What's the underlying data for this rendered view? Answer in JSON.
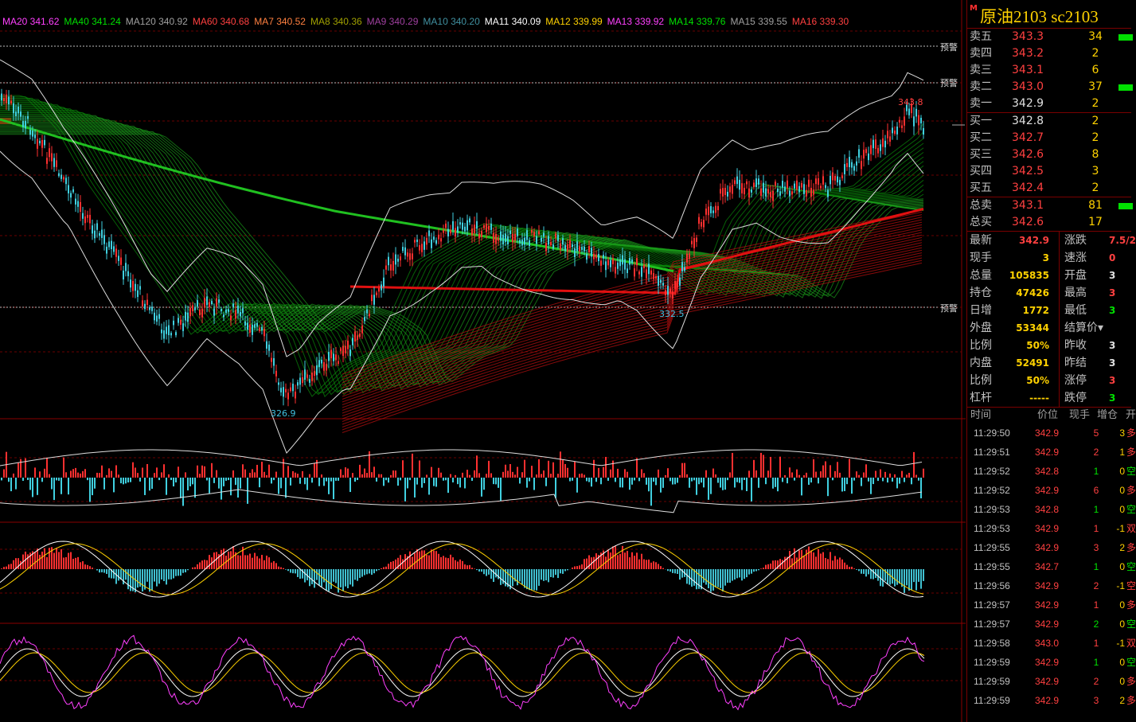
{
  "ma_legend": [
    {
      "label": "MA20 341.62",
      "color": "#ff40ff"
    },
    {
      "label": "MA40 341.24",
      "color": "#00e000"
    },
    {
      "label": "MA120 340.92",
      "color": "#a0a0a0"
    },
    {
      "label": "MA60 340.68",
      "color": "#ff4040"
    },
    {
      "label": "MA7 340.52",
      "color": "#ff8040"
    },
    {
      "label": "MA8 340.36",
      "color": "#a0a000"
    },
    {
      "label": "MA9 340.29",
      "color": "#a040a0"
    },
    {
      "label": "MA10 340.20",
      "color": "#4090a0"
    },
    {
      "label": "MA11 340.09",
      "color": "#ffffff"
    },
    {
      "label": "MA12 339.99",
      "color": "#ffd200"
    },
    {
      "label": "MA13 339.92",
      "color": "#ff40ff"
    },
    {
      "label": "MA14 339.76",
      "color": "#00e000"
    },
    {
      "label": "MA15 339.55",
      "color": "#a0a0a0"
    },
    {
      "label": "MA16 339.30",
      "color": "#ff4040"
    }
  ],
  "chart": {
    "warning_label": "预警",
    "high_label": "343.8",
    "mid_low_label": "332.5",
    "low_label": "326.9"
  },
  "quote": {
    "title": "原油2103  sc2103",
    "asks": [
      {
        "label": "卖五",
        "price": "343.3",
        "vol": "34",
        "price_color": "#ff4040",
        "bar": 1
      },
      {
        "label": "卖四",
        "price": "343.2",
        "vol": "2",
        "price_color": "#ff4040",
        "bar": 0
      },
      {
        "label": "卖三",
        "price": "343.1",
        "vol": "6",
        "price_color": "#ff4040",
        "bar": 0
      },
      {
        "label": "卖二",
        "price": "343.0",
        "vol": "37",
        "price_color": "#ff4040",
        "bar": 1
      },
      {
        "label": "卖一",
        "price": "342.9",
        "vol": "2",
        "price_color": "#e0e0e0",
        "bar": 0
      }
    ],
    "bids": [
      {
        "label": "买一",
        "price": "342.8",
        "vol": "2",
        "price_color": "#e0e0e0",
        "bar": 0
      },
      {
        "label": "买二",
        "price": "342.7",
        "vol": "2",
        "price_color": "#ff4040",
        "bar": 0
      },
      {
        "label": "买三",
        "price": "342.6",
        "vol": "8",
        "price_color": "#ff4040",
        "bar": 0
      },
      {
        "label": "买四",
        "price": "342.5",
        "vol": "3",
        "price_color": "#ff4040",
        "bar": 0
      },
      {
        "label": "买五",
        "price": "342.4",
        "vol": "2",
        "price_color": "#ff4040",
        "bar": 0
      }
    ],
    "totals": [
      {
        "label": "总卖",
        "price": "343.1",
        "vol": "81",
        "price_color": "#ff4040",
        "bar": 1
      },
      {
        "label": "总买",
        "price": "342.6",
        "vol": "17",
        "price_color": "#ff4040",
        "bar": 0
      }
    ],
    "stats": [
      {
        "l1": "最新",
        "v1": "342.9",
        "c1": "#ff4040",
        "l2": "涨跌",
        "v2": "7.5/2",
        "c2": "#ff4040"
      },
      {
        "l1": "现手",
        "v1": "3",
        "c1": "#ffd200",
        "l2": "速涨",
        "v2": "0",
        "c2": "#ff4040"
      },
      {
        "l1": "总量",
        "v1": "105835",
        "c1": "#ffd200",
        "l2": "开盘",
        "v2": "3",
        "c2": "#e0e0e0"
      },
      {
        "l1": "持仓",
        "v1": "47426",
        "c1": "#ffd200",
        "l2": "最高",
        "v2": "3",
        "c2": "#ff4040"
      },
      {
        "l1": "日增",
        "v1": "1772",
        "c1": "#ffd200",
        "l2": "最低",
        "v2": "3",
        "c2": "#00e000"
      },
      {
        "l1": "外盘",
        "v1": "53344",
        "c1": "#ffd200",
        "l2": "结算价▾",
        "v2": "",
        "c2": "#e0e0e0"
      },
      {
        "l1": "比例",
        "v1": "50%",
        "c1": "#ffd200",
        "l2": "昨收",
        "v2": "3",
        "c2": "#e0e0e0"
      },
      {
        "l1": "内盘",
        "v1": "52491",
        "c1": "#ffd200",
        "l2": "昨结",
        "v2": "3",
        "c2": "#e0e0e0"
      },
      {
        "l1": "比例",
        "v1": "50%",
        "c1": "#ffd200",
        "l2": "涨停",
        "v2": "3",
        "c2": "#ff4040"
      },
      {
        "l1": "杠杆",
        "v1": "-----",
        "c1": "#ffd200",
        "l2": "跌停",
        "v2": "3",
        "c2": "#00e000"
      }
    ],
    "tick_header": {
      "time": "时间",
      "price": "价位",
      "hand": "现手",
      "oi": "增仓",
      "nature": "开"
    },
    "ticks": [
      {
        "time": "11:29:50",
        "price": "342.9",
        "hand": "5",
        "oi": "3",
        "nature": "多",
        "hc": "#ff4040"
      },
      {
        "time": "11:29:51",
        "price": "342.9",
        "hand": "2",
        "oi": "1",
        "nature": "多",
        "hc": "#ff4040"
      },
      {
        "time": "11:29:52",
        "price": "342.8",
        "hand": "1",
        "oi": "0",
        "nature": "空",
        "hc": "#00e000"
      },
      {
        "time": "11:29:52",
        "price": "342.9",
        "hand": "6",
        "oi": "0",
        "nature": "多",
        "hc": "#ff4040"
      },
      {
        "time": "11:29:53",
        "price": "342.8",
        "hand": "1",
        "oi": "0",
        "nature": "空",
        "hc": "#00e000"
      },
      {
        "time": "11:29:53",
        "price": "342.9",
        "hand": "1",
        "oi": "-1",
        "nature": "双",
        "hc": "#ff4040"
      },
      {
        "time": "11:29:55",
        "price": "342.9",
        "hand": "3",
        "oi": "2",
        "nature": "多",
        "hc": "#ff4040"
      },
      {
        "time": "11:29:55",
        "price": "342.7",
        "hand": "1",
        "oi": "0",
        "nature": "空",
        "hc": "#00e000"
      },
      {
        "time": "11:29:56",
        "price": "342.9",
        "hand": "2",
        "oi": "-1",
        "nature": "空",
        "hc": "#ff4040"
      },
      {
        "time": "11:29:57",
        "price": "342.9",
        "hand": "1",
        "oi": "0",
        "nature": "多",
        "hc": "#ff4040"
      },
      {
        "time": "11:29:57",
        "price": "342.9",
        "hand": "2",
        "oi": "0",
        "nature": "空",
        "hc": "#00e000"
      },
      {
        "time": "11:29:58",
        "price": "343.0",
        "hand": "1",
        "oi": "-1",
        "nature": "双",
        "hc": "#ff4040"
      },
      {
        "time": "11:29:59",
        "price": "342.9",
        "hand": "1",
        "oi": "0",
        "nature": "空",
        "hc": "#00e000"
      },
      {
        "time": "11:29:59",
        "price": "342.9",
        "hand": "2",
        "oi": "0",
        "nature": "多",
        "hc": "#ff4040"
      },
      {
        "time": "11:29:59",
        "price": "342.9",
        "hand": "3",
        "oi": "2",
        "nature": "多",
        "hc": "#ff4040"
      }
    ]
  }
}
